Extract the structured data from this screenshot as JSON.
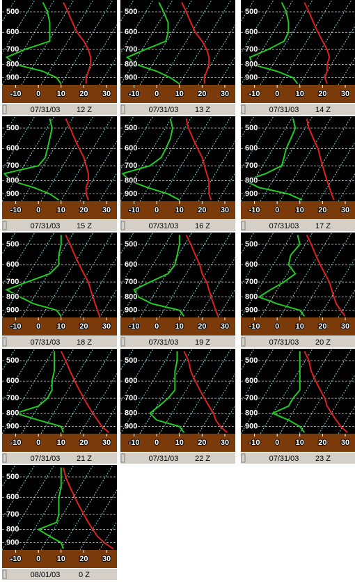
{
  "chart_data": [
    {
      "type": "line",
      "date": "07/31/03",
      "time": "12 Z",
      "y_log": true,
      "y_inverted": true,
      "xlim": [
        -16,
        34.6
      ],
      "ylim": [
        450,
        960
      ],
      "xticks": [
        -10,
        0,
        10,
        20,
        30
      ],
      "yticks": [
        500,
        600,
        700,
        800,
        900
      ],
      "grid": true,
      "y": [
        460,
        500,
        550,
        600,
        650,
        700,
        750,
        800,
        850,
        900,
        950
      ],
      "series": [
        {
          "color": "#e02020",
          "values": [
            11,
            13,
            15,
            17,
            20,
            22,
            23,
            23,
            22,
            21,
            21
          ]
        },
        {
          "color": "#22cc22",
          "values": [
            2,
            4,
            5,
            5,
            5,
            -6,
            -14,
            -10,
            2,
            8,
            10
          ]
        }
      ]
    },
    {
      "type": "line",
      "date": "07/31/03",
      "time": "13 Z",
      "y_log": true,
      "y_inverted": true,
      "xlim": [
        -16,
        34.6
      ],
      "ylim": [
        450,
        960
      ],
      "xticks": [
        -10,
        0,
        10,
        20,
        30
      ],
      "yticks": [
        500,
        600,
        700,
        800,
        900
      ],
      "grid": true,
      "y": [
        460,
        500,
        550,
        600,
        650,
        700,
        750,
        800,
        850,
        900,
        950
      ],
      "series": [
        {
          "color": "#e02020",
          "values": [
            11,
            13,
            15,
            17,
            20,
            22,
            23,
            23,
            22,
            21,
            21
          ]
        },
        {
          "color": "#22cc22",
          "values": [
            1,
            3,
            5,
            5,
            4,
            -5,
            -13,
            -9,
            0,
            6,
            10
          ]
        }
      ]
    },
    {
      "type": "line",
      "date": "07/31/03",
      "time": "14 Z",
      "y_log": true,
      "y_inverted": true,
      "xlim": [
        -16,
        34.6
      ],
      "ylim": [
        450,
        960
      ],
      "xticks": [
        -10,
        0,
        10,
        20,
        30
      ],
      "yticks": [
        500,
        600,
        700,
        800,
        900
      ],
      "grid": true,
      "y": [
        460,
        500,
        550,
        600,
        650,
        700,
        750,
        800,
        850,
        900,
        950
      ],
      "series": [
        {
          "color": "#e02020",
          "values": [
            12,
            14,
            16,
            18,
            20,
            22,
            23,
            22,
            22,
            21,
            22
          ]
        },
        {
          "color": "#22cc22",
          "values": [
            2,
            4,
            5,
            5,
            3,
            -4,
            -12,
            -11,
            0,
            7,
            9
          ]
        }
      ]
    },
    {
      "type": "line",
      "date": "07/31/03",
      "time": "15 Z",
      "y_log": true,
      "y_inverted": true,
      "xlim": [
        -16,
        34.6
      ],
      "ylim": [
        450,
        960
      ],
      "xticks": [
        -10,
        0,
        10,
        20,
        30
      ],
      "yticks": [
        500,
        600,
        700,
        800,
        900
      ],
      "grid": true,
      "y": [
        460,
        500,
        550,
        600,
        650,
        700,
        750,
        800,
        850,
        900,
        950
      ],
      "series": [
        {
          "color": "#e02020",
          "values": [
            12,
            14,
            16,
            18,
            20,
            21,
            22,
            22,
            21,
            21,
            22
          ]
        },
        {
          "color": "#22cc22",
          "values": [
            5,
            6,
            5,
            4,
            3,
            0,
            -15,
            -12,
            -2,
            5,
            9
          ]
        }
      ]
    },
    {
      "type": "line",
      "date": "07/31/03",
      "time": "16 Z",
      "y_log": true,
      "y_inverted": true,
      "xlim": [
        -16,
        34.6
      ],
      "ylim": [
        450,
        960
      ],
      "xticks": [
        -10,
        0,
        10,
        20,
        30
      ],
      "yticks": [
        500,
        600,
        700,
        800,
        900
      ],
      "grid": true,
      "y": [
        460,
        500,
        550,
        600,
        650,
        700,
        750,
        800,
        850,
        900,
        950
      ],
      "series": [
        {
          "color": "#e02020",
          "values": [
            13,
            14,
            16,
            18,
            20,
            21,
            22,
            23,
            23,
            23,
            24
          ]
        },
        {
          "color": "#22cc22",
          "values": [
            6,
            7,
            6,
            4,
            2,
            -3,
            -15,
            -12,
            -4,
            5,
            10
          ]
        }
      ]
    },
    {
      "type": "line",
      "date": "07/31/03",
      "time": "17 Z",
      "y_log": true,
      "y_inverted": true,
      "xlim": [
        -16,
        34.6
      ],
      "ylim": [
        450,
        960
      ],
      "xticks": [
        -10,
        0,
        10,
        20,
        30
      ],
      "yticks": [
        500,
        600,
        700,
        800,
        900
      ],
      "grid": true,
      "y": [
        460,
        500,
        550,
        600,
        650,
        700,
        750,
        800,
        850,
        900,
        950
      ],
      "series": [
        {
          "color": "#e02020",
          "values": [
            13,
            14,
            16,
            18,
            19,
            20,
            21,
            22,
            23,
            24,
            25
          ]
        },
        {
          "color": "#22cc22",
          "values": [
            7,
            8,
            6,
            4,
            3,
            2,
            -5,
            -14,
            -8,
            5,
            11
          ]
        }
      ]
    },
    {
      "type": "line",
      "date": "07/31/03",
      "time": "18 Z",
      "y_log": true,
      "y_inverted": true,
      "xlim": [
        -16,
        34.6
      ],
      "ylim": [
        450,
        960
      ],
      "xticks": [
        -10,
        0,
        10,
        20,
        30
      ],
      "yticks": [
        500,
        600,
        700,
        800,
        900
      ],
      "grid": true,
      "y": [
        460,
        500,
        550,
        600,
        650,
        700,
        750,
        800,
        850,
        900,
        950
      ],
      "series": [
        {
          "color": "#e02020",
          "values": [
            12,
            14,
            16,
            18,
            20,
            22,
            23,
            24,
            25,
            26,
            27
          ]
        },
        {
          "color": "#22cc22",
          "values": [
            10,
            10,
            9,
            9,
            5,
            -5,
            -14,
            -8,
            -2,
            8,
            10
          ]
        }
      ]
    },
    {
      "type": "line",
      "date": "07/31/03",
      "time": "19 Z",
      "y_log": true,
      "y_inverted": true,
      "xlim": [
        -16,
        34.6
      ],
      "ylim": [
        450,
        960
      ],
      "xticks": [
        -10,
        0,
        10,
        20,
        30
      ],
      "yticks": [
        500,
        600,
        700,
        800,
        900
      ],
      "grid": true,
      "y": [
        460,
        500,
        550,
        600,
        650,
        700,
        750,
        800,
        850,
        900,
        950
      ],
      "series": [
        {
          "color": "#e02020",
          "values": [
            13,
            15,
            17,
            19,
            20,
            22,
            23,
            24,
            25,
            26,
            27
          ]
        },
        {
          "color": "#22cc22",
          "values": [
            10,
            10,
            9,
            8,
            5,
            -3,
            -10,
            -8,
            -2,
            10,
            12
          ]
        }
      ]
    },
    {
      "type": "line",
      "date": "07/31/03",
      "time": "20 Z",
      "y_log": true,
      "y_inverted": true,
      "xlim": [
        -16,
        34.6
      ],
      "ylim": [
        450,
        960
      ],
      "xticks": [
        -10,
        0,
        10,
        20,
        30
      ],
      "yticks": [
        500,
        600,
        700,
        800,
        900
      ],
      "grid": true,
      "y": [
        460,
        500,
        550,
        600,
        650,
        700,
        750,
        800,
        850,
        900,
        950
      ],
      "series": [
        {
          "color": "#e02020",
          "values": [
            13,
            15,
            17,
            19,
            21,
            23,
            24,
            25,
            26,
            28,
            30
          ]
        },
        {
          "color": "#22cc22",
          "values": [
            9,
            10,
            6,
            5,
            8,
            3,
            -3,
            -8,
            0,
            10,
            12
          ]
        }
      ]
    },
    {
      "type": "line",
      "date": "07/31/03",
      "time": "21 Z",
      "y_log": true,
      "y_inverted": true,
      "xlim": [
        -16,
        34.6
      ],
      "ylim": [
        450,
        960
      ],
      "xticks": [
        -10,
        0,
        10,
        20,
        30
      ],
      "yticks": [
        500,
        600,
        700,
        800,
        900
      ],
      "grid": true,
      "y": [
        460,
        500,
        550,
        600,
        650,
        700,
        750,
        800,
        850,
        900,
        950
      ],
      "series": [
        {
          "color": "#e02020",
          "values": [
            10,
            12,
            14,
            16,
            18,
            20,
            22,
            24,
            26,
            28,
            31
          ]
        },
        {
          "color": "#22cc22",
          "values": [
            7,
            7,
            7,
            6,
            6,
            4,
            0,
            -10,
            0,
            10,
            11
          ]
        }
      ]
    },
    {
      "type": "line",
      "date": "07/31/03",
      "time": "22 Z",
      "y_log": true,
      "y_inverted": true,
      "xlim": [
        -16,
        34.6
      ],
      "ylim": [
        450,
        960
      ],
      "xticks": [
        -10,
        0,
        10,
        20,
        30
      ],
      "yticks": [
        500,
        600,
        700,
        800,
        900
      ],
      "grid": true,
      "y": [
        460,
        500,
        550,
        600,
        650,
        700,
        750,
        800,
        850,
        900,
        950
      ],
      "series": [
        {
          "color": "#e02020",
          "values": [
            12,
            14,
            15,
            17,
            19,
            21,
            23,
            25,
            26,
            28,
            31
          ]
        },
        {
          "color": "#22cc22",
          "values": [
            9,
            9,
            8,
            8,
            8,
            5,
            1,
            -3,
            0,
            10,
            12
          ]
        }
      ]
    },
    {
      "type": "line",
      "date": "07/31/03",
      "time": "23 Z",
      "y_log": true,
      "y_inverted": true,
      "xlim": [
        -16,
        34.6
      ],
      "ylim": [
        450,
        960
      ],
      "xticks": [
        -10,
        0,
        10,
        20,
        30
      ],
      "yticks": [
        500,
        600,
        700,
        800,
        900
      ],
      "grid": true,
      "y": [
        460,
        500,
        550,
        600,
        650,
        700,
        750,
        800,
        850,
        900,
        950
      ],
      "series": [
        {
          "color": "#e02020",
          "values": [
            12,
            14,
            15,
            17,
            19,
            21,
            22,
            24,
            26,
            28,
            31
          ]
        },
        {
          "color": "#22cc22",
          "values": [
            10,
            10,
            10,
            10,
            10,
            7,
            5,
            -2,
            5,
            10,
            12
          ]
        }
      ]
    },
    {
      "type": "line",
      "date": "08/01/03",
      "time": "0 Z",
      "y_log": true,
      "y_inverted": true,
      "xlim": [
        -16,
        34.6
      ],
      "ylim": [
        450,
        960
      ],
      "xticks": [
        -10,
        0,
        10,
        20,
        30
      ],
      "yticks": [
        500,
        600,
        700,
        800,
        900
      ],
      "grid": true,
      "y": [
        460,
        500,
        550,
        600,
        650,
        700,
        750,
        800,
        850,
        900,
        950
      ],
      "series": [
        {
          "color": "#e02020",
          "values": [
            11,
            12,
            14,
            16,
            18,
            20,
            22,
            24,
            26,
            29,
            33
          ]
        },
        {
          "color": "#22cc22",
          "values": [
            10,
            10,
            10,
            9,
            9,
            9,
            8,
            0,
            5,
            10,
            11
          ]
        }
      ]
    }
  ]
}
